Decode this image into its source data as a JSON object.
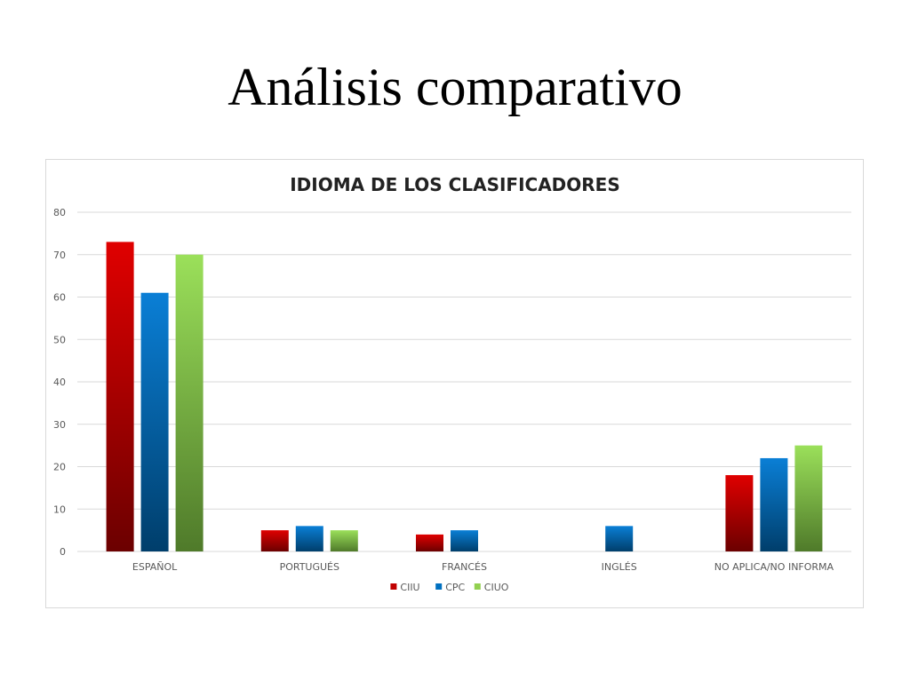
{
  "slide": {
    "title": "Análisis comparativo"
  },
  "chart_data": {
    "type": "bar",
    "title": "IDIOMA DE LOS CLASIFICADORES",
    "xlabel": "",
    "ylabel": "",
    "categories": [
      "ESPAÑOL",
      "PORTUGUÉS",
      "FRANCÉS",
      "INGLÉS",
      "NO APLICA/NO INFORMA"
    ],
    "series": [
      {
        "name": "CIIU",
        "values": [
          73,
          5,
          4,
          0,
          18
        ],
        "color_top": "#e00000",
        "color_bottom": "#6b0000",
        "legend_color": "#c00000"
      },
      {
        "name": "CPC",
        "values": [
          61,
          6,
          5,
          6,
          22
        ],
        "color_top": "#0a7fd6",
        "color_bottom": "#003e6b",
        "legend_color": "#0070c0"
      },
      {
        "name": "CIUO",
        "values": [
          70,
          5,
          0,
          0,
          25
        ],
        "color_top": "#9be05a",
        "color_bottom": "#4f7a2a",
        "legend_color": "#92d050"
      }
    ],
    "ylim": [
      0,
      80
    ],
    "yticks": [
      0,
      10,
      20,
      30,
      40,
      50,
      60,
      70,
      80
    ],
    "grid": true,
    "legend": "bottom"
  }
}
